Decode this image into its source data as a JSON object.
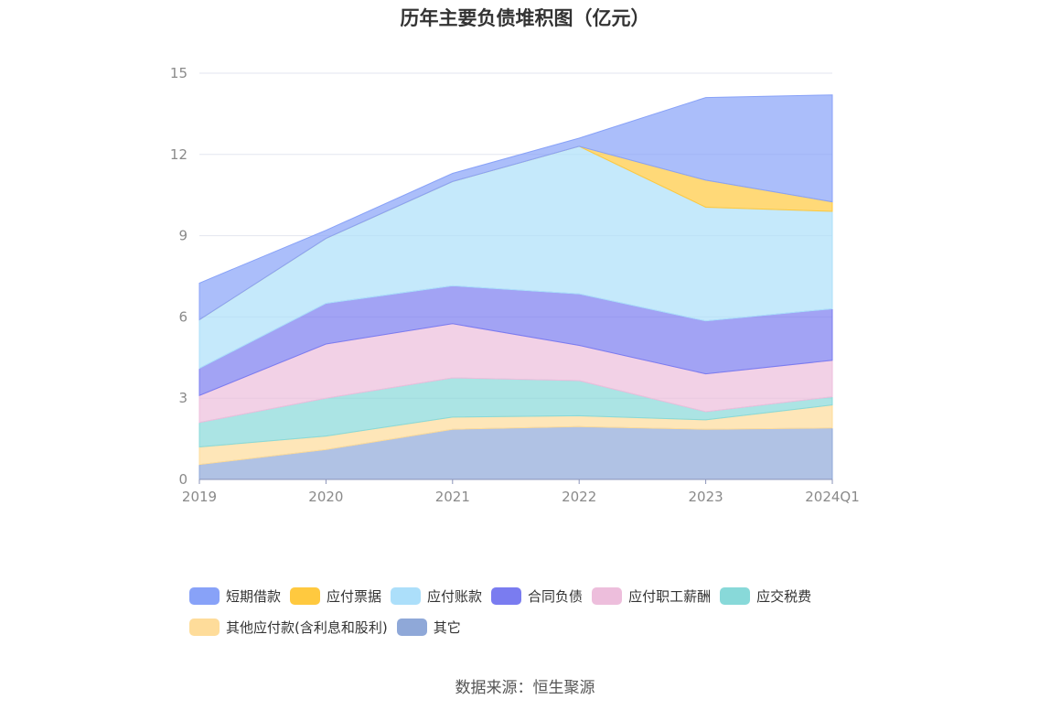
{
  "chart_data": {
    "type": "area",
    "stacked": true,
    "title": "历年主要负债堆积图（亿元）",
    "x": [
      "2019",
      "2020",
      "2021",
      "2022",
      "2023",
      "2024Q1"
    ],
    "ylim": [
      0,
      15
    ],
    "yticks": [
      "0",
      "3",
      "6",
      "9",
      "12",
      "15"
    ],
    "grid": true,
    "legend_position": "bottom",
    "series": [
      {
        "name": "其它",
        "color": "#8fa8d8",
        "values": [
          0.55,
          1.1,
          1.85,
          1.95,
          1.85,
          1.9
        ]
      },
      {
        "name": "其他应付款(含利息和股利)",
        "color": "#fedc9a",
        "values": [
          0.65,
          0.5,
          0.45,
          0.4,
          0.35,
          0.85
        ]
      },
      {
        "name": "应交税费",
        "color": "#88d9d9",
        "values": [
          0.9,
          1.4,
          1.45,
          1.3,
          0.3,
          0.3
        ]
      },
      {
        "name": "应付职工薪酬",
        "color": "#edbedc",
        "values": [
          1.0,
          2.0,
          2.0,
          1.3,
          1.4,
          1.35
        ]
      },
      {
        "name": "合同负债",
        "color": "#7a7cf0",
        "values": [
          1.0,
          1.5,
          1.4,
          1.9,
          1.95,
          1.9
        ]
      },
      {
        "name": "应付账款",
        "color": "#acdffa",
        "values": [
          1.8,
          2.4,
          3.85,
          5.45,
          4.2,
          3.6
        ]
      },
      {
        "name": "应付票据",
        "color": "#ffc93f",
        "values": [
          0,
          0,
          0,
          0,
          1.0,
          0.35
        ]
      },
      {
        "name": "短期借款",
        "color": "#88a2f8",
        "values": [
          1.35,
          0.3,
          0.3,
          0.3,
          3.05,
          3.95
        ]
      }
    ],
    "legend_order": [
      "短期借款",
      "应付票据",
      "应付账款",
      "合同负债",
      "应付职工薪酬",
      "应交税费",
      "其他应付款(含利息和股利)",
      "其它"
    ]
  },
  "source_text": "数据来源：恒生聚源"
}
